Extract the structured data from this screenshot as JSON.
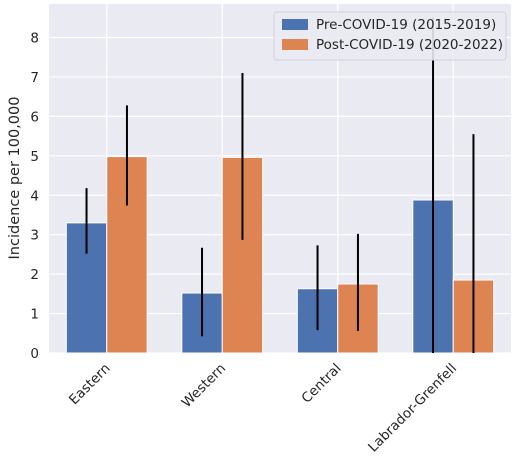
{
  "chart_data": {
    "type": "bar",
    "categories": [
      "Eastern",
      "Western",
      "Central",
      "Labrador-Grenfell"
    ],
    "series": [
      {
        "name": "Pre-COVID-19 (2015-2019)",
        "color": "#4c72b0",
        "values": [
          3.3,
          1.52,
          1.63,
          3.88
        ],
        "error_low": [
          2.52,
          0.42,
          0.58,
          0.0
        ],
        "error_high": [
          4.18,
          2.67,
          2.73,
          8.5
        ]
      },
      {
        "name": "Post-COVID-19 (2020-2022)",
        "color": "#dd8452",
        "values": [
          4.98,
          4.96,
          1.75,
          1.85
        ],
        "error_low": [
          3.74,
          2.87,
          0.56,
          0.0
        ],
        "error_high": [
          6.28,
          7.1,
          3.02,
          5.55
        ]
      }
    ],
    "xlabel": "",
    "ylabel": "Incidence per 100,000",
    "ylim": [
      0,
      8.85
    ],
    "yticks": [
      0,
      1,
      2,
      3,
      4,
      5,
      6,
      7,
      8
    ],
    "grid": true,
    "legend_position": "top-right",
    "background": "#eaeaf2"
  }
}
